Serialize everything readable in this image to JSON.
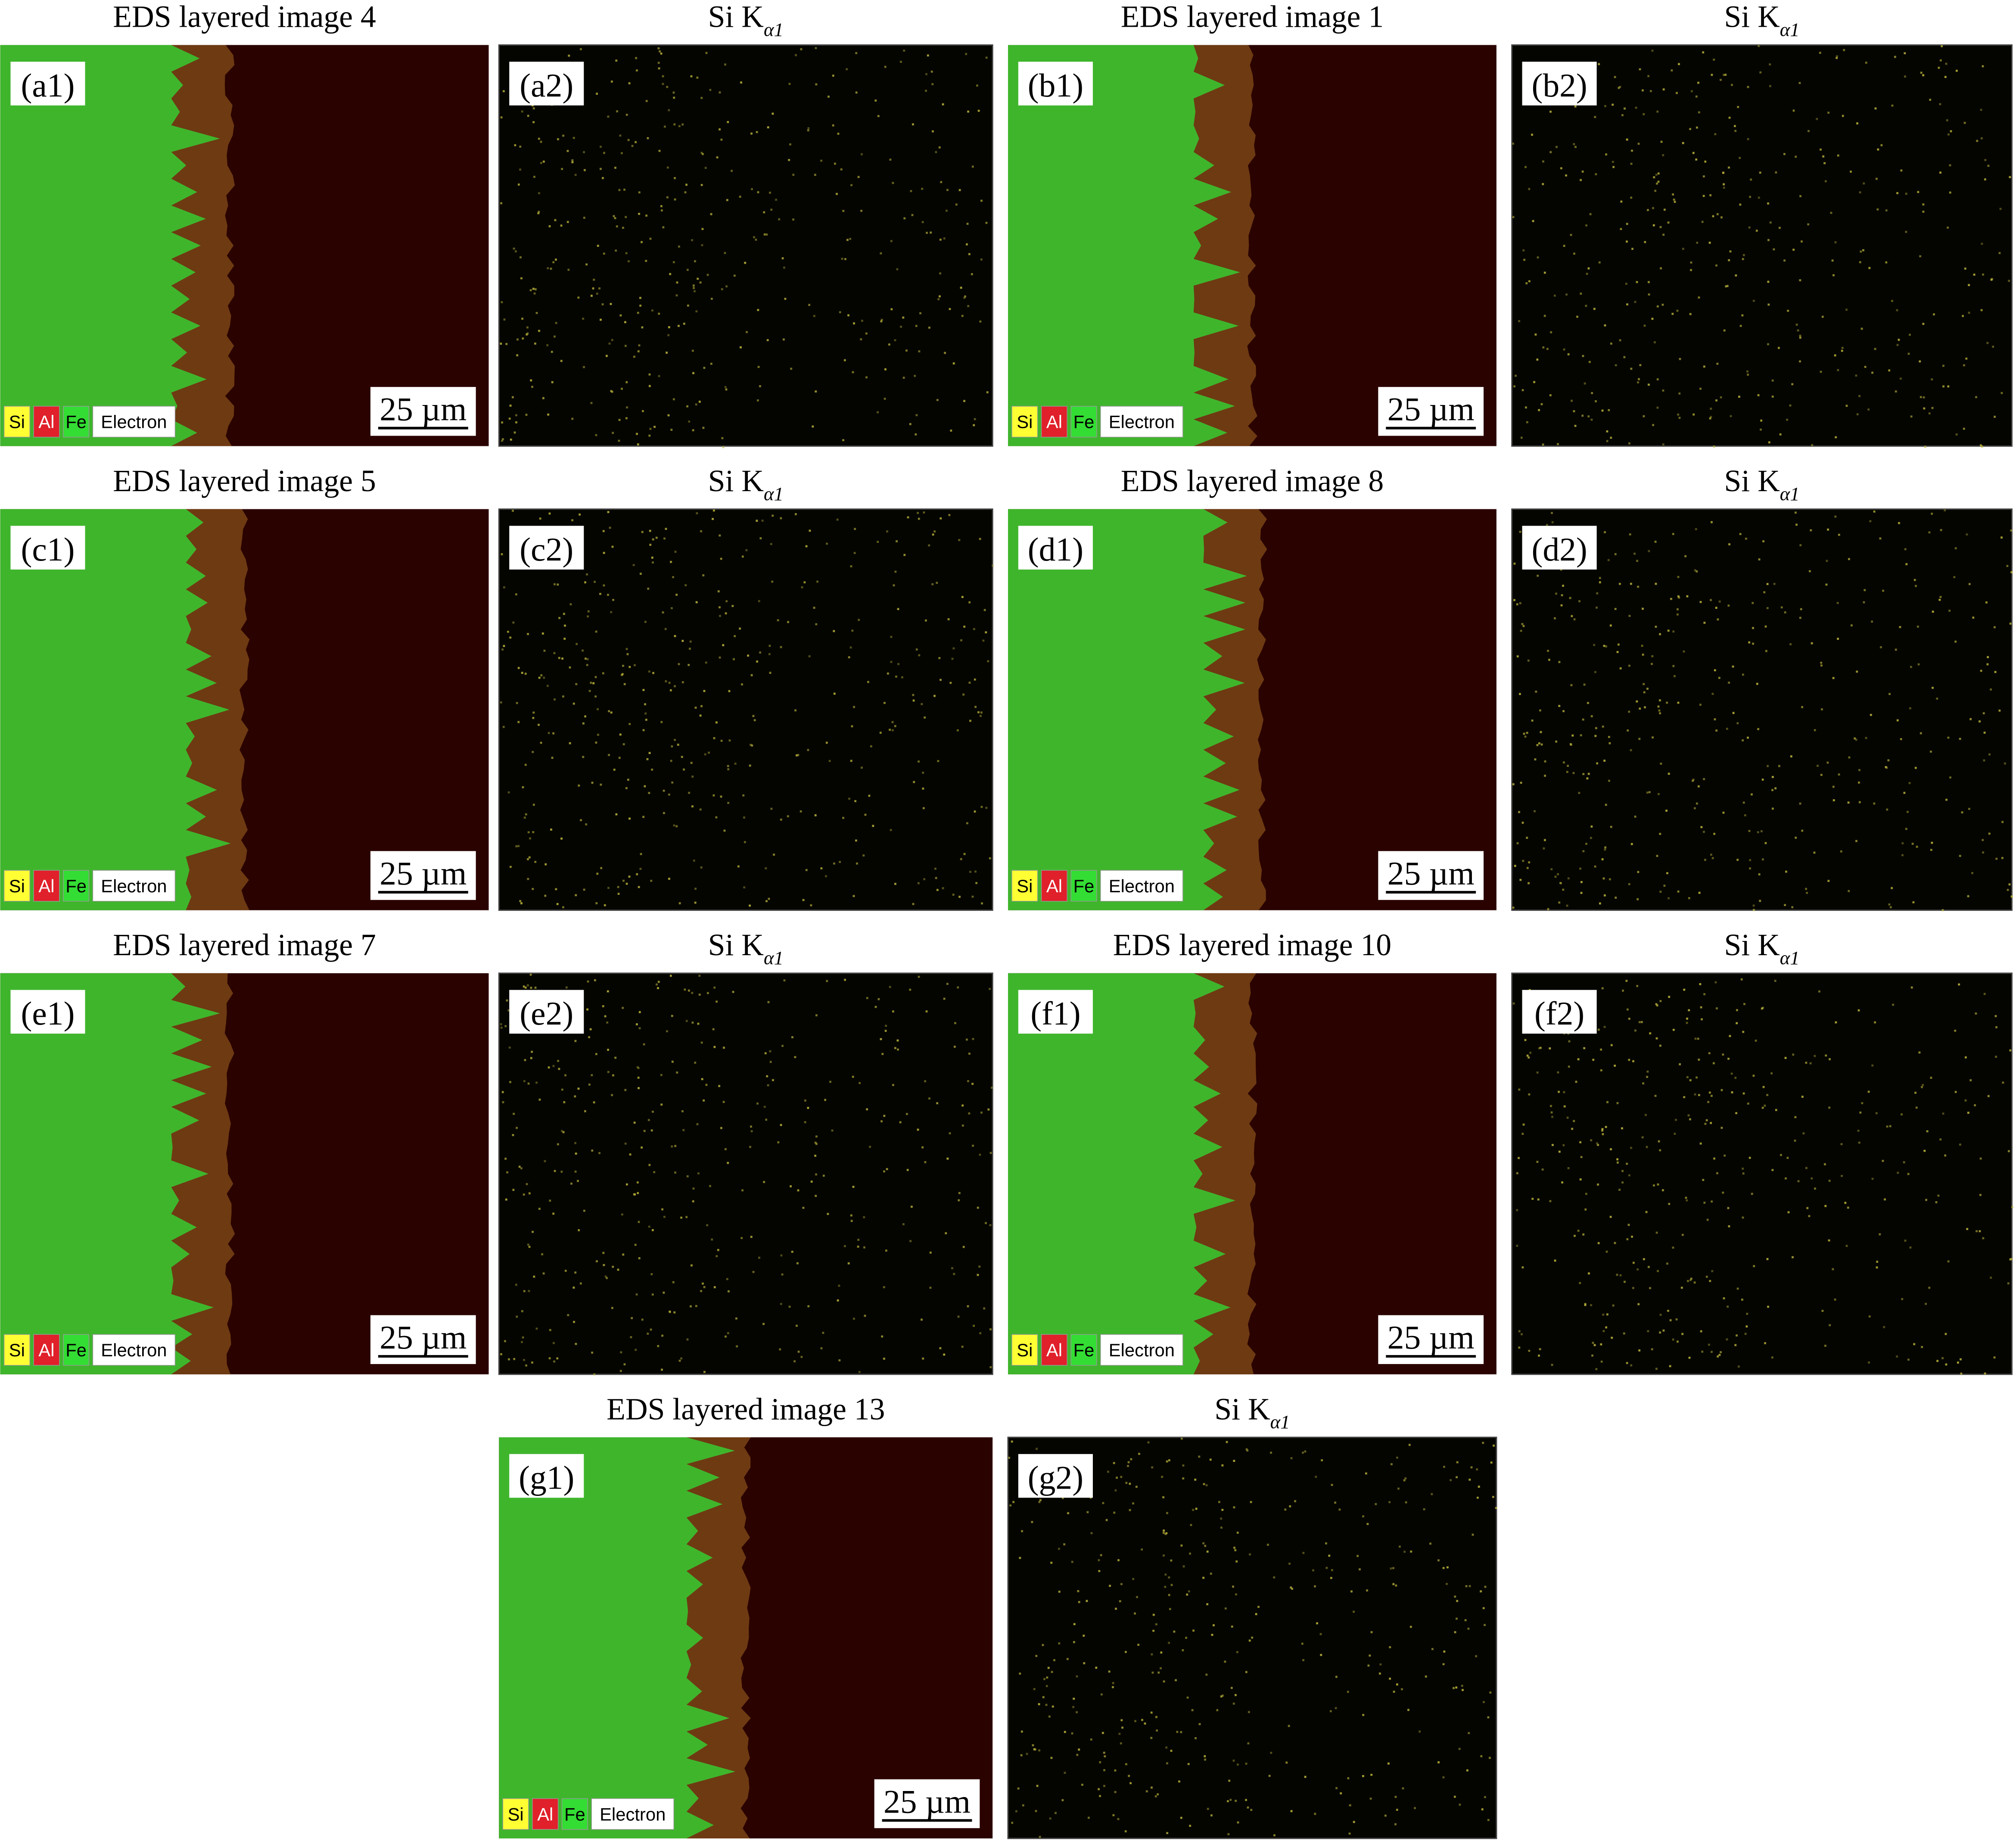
{
  "panels": [
    {
      "title": "EDS layered image 4",
      "label": "(a1)",
      "legend": [
        "Si",
        "Al",
        "Fe",
        "Electron"
      ],
      "scale_bar": "25 µm"
    },
    {
      "title": {
        "main": "Si K",
        "sub": "α1"
      },
      "label": "(a2)"
    },
    {
      "title": "EDS layered image 1",
      "label": "(b1)",
      "legend": [
        "Si",
        "Al",
        "Fe",
        "Electron"
      ],
      "scale_bar": "25 µm"
    },
    {
      "title": {
        "main": "Si K",
        "sub": "α1"
      },
      "label": "(b2)"
    },
    {
      "title": "EDS layered image 5",
      "label": "(c1)",
      "legend": [
        "Si",
        "Al",
        "Fe",
        "Electron"
      ],
      "scale_bar": "25 µm"
    },
    {
      "title": {
        "main": "Si K",
        "sub": "α1"
      },
      "label": "(c2)"
    },
    {
      "title": "EDS layered image 8",
      "label": "(d1)",
      "legend": [
        "Si",
        "Al",
        "Fe",
        "Electron"
      ],
      "scale_bar": "25 µm"
    },
    {
      "title": {
        "main": "Si K",
        "sub": "α1"
      },
      "label": "(d2)"
    },
    {
      "title": "EDS layered image 7",
      "label": "(e1)",
      "legend": [
        "Si",
        "Al",
        "Fe",
        "Electron"
      ],
      "scale_bar": "25 µm"
    },
    {
      "title": {
        "main": "Si K",
        "sub": "α1"
      },
      "label": "(e2)"
    },
    {
      "title": "EDS layered image 10",
      "label": "(f1)",
      "legend": [
        "Si",
        "Al",
        "Fe",
        "Electron"
      ],
      "scale_bar": "25 µm"
    },
    {
      "title": {
        "main": "Si K",
        "sub": "α1"
      },
      "label": "(f2)"
    },
    {
      "title": "EDS layered image 13",
      "label": "(g1)",
      "legend": [
        "Si",
        "Al",
        "Fe",
        "Electron"
      ],
      "scale_bar": "25 µm"
    },
    {
      "title": {
        "main": "Si K",
        "sub": "α1"
      },
      "label": "(g2)"
    }
  ]
}
